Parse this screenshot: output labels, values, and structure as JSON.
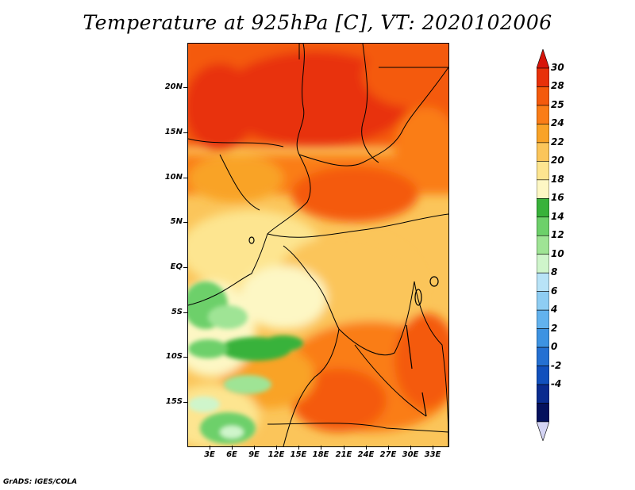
{
  "title": "Temperature at 925hPa [C], VT: 2020102006",
  "footer": "GrADS: IGES/COLA",
  "lat_labels": [
    "20N",
    "15N",
    "10N",
    "5N",
    "EQ",
    "5S",
    "10S",
    "15S"
  ],
  "lon_labels": [
    "3E",
    "6E",
    "9E",
    "12E",
    "15E",
    "18E",
    "21E",
    "24E",
    "27E",
    "30E",
    "33E"
  ],
  "colorbar": {
    "labels": [
      "30",
      "28",
      "25",
      "24",
      "22",
      "20",
      "18",
      "16",
      "14",
      "12",
      "10",
      "8",
      "6",
      "4",
      "2",
      "0",
      "-2",
      "-4"
    ],
    "colors": [
      "#e8310a",
      "#f45a0c",
      "#fa7d17",
      "#f9a327",
      "#fbc55a",
      "#fde590",
      "#fdf7c4",
      "#38b23a",
      "#6dd06a",
      "#9fe495",
      "#cff5cb",
      "#b8e3f7",
      "#8ecdf3",
      "#62b2ee",
      "#3d93e2",
      "#2470d2",
      "#1150bd",
      "#0a2b8f",
      "#05115d"
    ],
    "top_cap_color": "#d7150a",
    "bottom_cap_color": "#d4d4f4"
  }
}
